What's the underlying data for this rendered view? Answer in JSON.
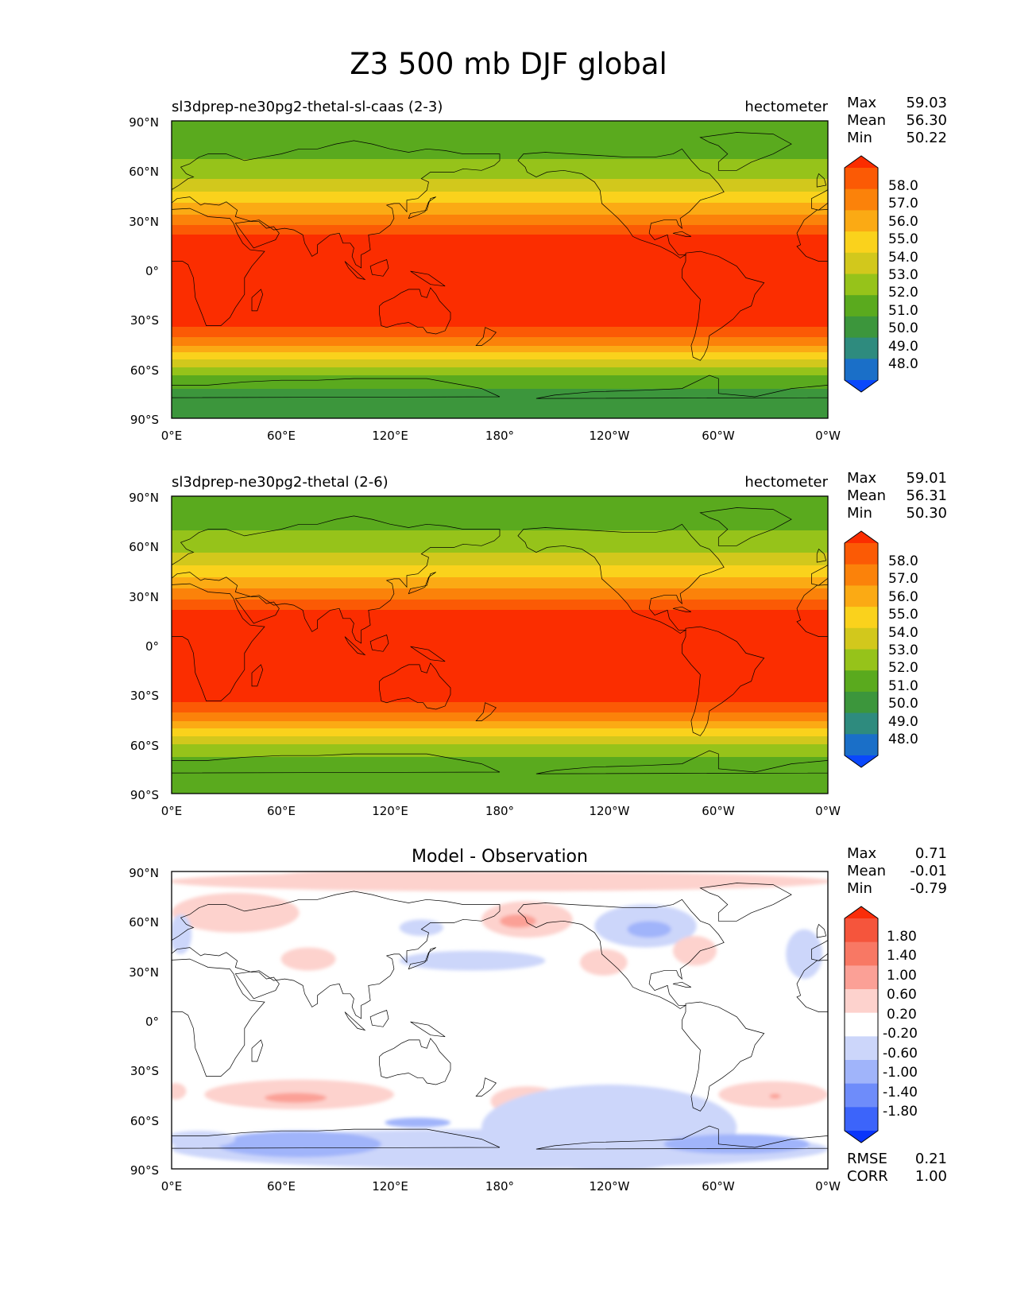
{
  "figure": {
    "title": "Z3 500 mb DJF global"
  },
  "lon_ticks": [
    "0°E",
    "60°E",
    "120°E",
    "180°",
    "120°W",
    "60°W",
    "0°W"
  ],
  "lat_ticks": [
    "90°N",
    "60°N",
    "30°N",
    "0°",
    "30°S",
    "60°S",
    "90°S"
  ],
  "colors": {
    "z3_levels": [
      "#0a48fc",
      "#1a6fc8",
      "#2e8b7e",
      "#3c963c",
      "#5aaa1e",
      "#96c31a",
      "#d2c81c",
      "#fad21c",
      "#fbaa14",
      "#fb820a",
      "#fb5a05",
      "#fb2d00"
    ],
    "diff_levels": [
      "#0a35fa",
      "#3c64fa",
      "#6e8cfa",
      "#a0b4fa",
      "#ccd6fa",
      "#ffffff",
      "#fdd2cd",
      "#fba096",
      "#f87864",
      "#f5553c",
      "#fa2d0a"
    ]
  },
  "chart_data": [
    {
      "type": "heatmap",
      "title_left": "sl3dprep-ne30pg2-thetal-sl-caas (2-3)",
      "title_right": "hectometer",
      "stats": [
        {
          "label": "Max",
          "value": "59.03"
        },
        {
          "label": "Mean",
          "value": "56.30"
        },
        {
          "label": "Min",
          "value": "50.22"
        }
      ],
      "colorbar_ticks": [
        "58.0",
        "57.0",
        "56.0",
        "55.0",
        "54.0",
        "53.0",
        "52.0",
        "51.0",
        "50.0",
        "49.0",
        "48.0"
      ],
      "lat": [
        90,
        75,
        62,
        52,
        44,
        36,
        28,
        20,
        0,
        -20,
        -34,
        -40,
        -46,
        -52,
        -58,
        -64,
        -72,
        -90
      ],
      "values": [
        51.0,
        51.5,
        52.3,
        53.3,
        54.5,
        55.6,
        56.8,
        58.2,
        58.6,
        58.4,
        58.1,
        57.2,
        56.0,
        54.6,
        53.2,
        52.0,
        51.0,
        50.5
      ]
    },
    {
      "type": "heatmap",
      "title_left": "sl3dprep-ne30pg2-thetal (2-6)",
      "title_right": "hectometer",
      "stats": [
        {
          "label": "Max",
          "value": "59.01"
        },
        {
          "label": "Mean",
          "value": "56.31"
        },
        {
          "label": "Min",
          "value": "50.30"
        }
      ],
      "colorbar_ticks": [
        "58.0",
        "57.0",
        "56.0",
        "55.0",
        "54.0",
        "53.0",
        "52.0",
        "51.0",
        "50.0",
        "49.0",
        "48.0"
      ],
      "lat": [
        90,
        75,
        62,
        52,
        44,
        36,
        28,
        20,
        0,
        -20,
        -34,
        -40,
        -46,
        -52,
        -58,
        -64,
        -72,
        -90
      ],
      "values": [
        51.2,
        51.7,
        52.4,
        53.4,
        54.6,
        55.7,
        56.9,
        58.2,
        58.6,
        58.4,
        58.1,
        57.2,
        56.0,
        54.7,
        53.4,
        52.4,
        51.6,
        51.4
      ]
    },
    {
      "type": "heatmap",
      "title_center": "Model - Observation",
      "stats": [
        {
          "label": "Max",
          "value": "0.71"
        },
        {
          "label": "Mean",
          "value": "-0.01"
        },
        {
          "label": "Min",
          "value": "-0.79"
        }
      ],
      "colorbar_ticks": [
        "1.80",
        "1.40",
        "1.00",
        "0.60",
        "0.20",
        "-0.20",
        "-0.60",
        "-1.00",
        "-1.40",
        "-1.80"
      ],
      "metrics": [
        {
          "label": "RMSE",
          "value": "0.21"
        },
        {
          "label": "CORR",
          "value": "1.00"
        }
      ],
      "anomalies": [
        {
          "lon": 180,
          "lat": 84,
          "rx": 182,
          "ry": 6,
          "value": 0.3
        },
        {
          "lon": 125,
          "lat": 87,
          "rx": 70,
          "ry": 4,
          "value": 0.3
        },
        {
          "lon": 35,
          "lat": 65,
          "rx": 35,
          "ry": 12,
          "value": 0.3
        },
        {
          "lon": 195,
          "lat": 61,
          "rx": 25,
          "ry": 11,
          "value": 0.35
        },
        {
          "lon": 190,
          "lat": 60,
          "rx": 10,
          "ry": 4,
          "value": 0.7
        },
        {
          "lon": 137,
          "lat": 56,
          "rx": 12,
          "ry": 5,
          "value": -0.4
        },
        {
          "lon": 165,
          "lat": 36,
          "rx": 40,
          "ry": 6,
          "value": -0.3
        },
        {
          "lon": 260,
          "lat": 57,
          "rx": 28,
          "ry": 13,
          "value": -0.5
        },
        {
          "lon": 262,
          "lat": 55,
          "rx": 12,
          "ry": 5,
          "value": -0.75
        },
        {
          "lon": 237,
          "lat": 35,
          "rx": 13,
          "ry": 8,
          "value": 0.3
        },
        {
          "lon": 287,
          "lat": 42,
          "rx": 12,
          "ry": 9,
          "value": 0.35
        },
        {
          "lon": 347,
          "lat": 40,
          "rx": 10,
          "ry": 15,
          "value": -0.3
        },
        {
          "lon": 75,
          "lat": 37,
          "rx": 15,
          "ry": 7,
          "value": 0.3
        },
        {
          "lon": 5,
          "lat": 52,
          "rx": 6,
          "ry": 12,
          "value": -0.3
        },
        {
          "lon": 70,
          "lat": -45,
          "rx": 52,
          "ry": 9,
          "value": 0.35
        },
        {
          "lon": 68,
          "lat": -47,
          "rx": 17,
          "ry": 3,
          "value": 0.65
        },
        {
          "lon": 195,
          "lat": -49,
          "rx": 20,
          "ry": 9,
          "value": 0.3
        },
        {
          "lon": 330,
          "lat": -45,
          "rx": 30,
          "ry": 8,
          "value": 0.3
        },
        {
          "lon": 331,
          "lat": -46,
          "rx": 3,
          "ry": 1.5,
          "value": 0.65
        },
        {
          "lon": 2,
          "lat": -43,
          "rx": 6,
          "ry": 5,
          "value": 0.3
        },
        {
          "lon": 240,
          "lat": -65,
          "rx": 70,
          "ry": 26,
          "value": -0.3
        },
        {
          "lon": 180,
          "lat": -78,
          "rx": 180,
          "ry": 12,
          "value": -0.3
        },
        {
          "lon": 70,
          "lat": -75,
          "rx": 45,
          "ry": 8,
          "value": -0.6
        },
        {
          "lon": 310,
          "lat": -75,
          "rx": 40,
          "ry": 6,
          "value": -0.6
        },
        {
          "lon": 135,
          "lat": -62,
          "rx": 18,
          "ry": 3,
          "value": -0.6
        },
        {
          "lon": 15,
          "lat": -72,
          "rx": 20,
          "ry": 5,
          "value": -0.35
        }
      ]
    }
  ]
}
